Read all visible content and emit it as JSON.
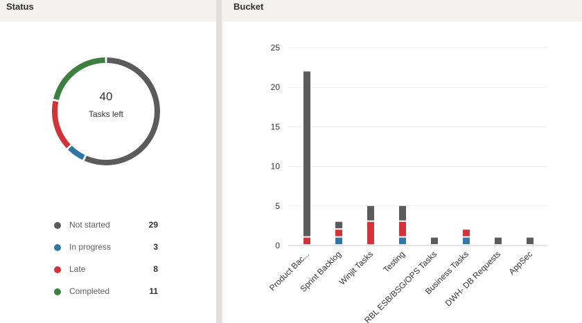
{
  "status_panel": {
    "title": "Status",
    "center_number": "40",
    "center_label": "Tasks left",
    "legend": [
      {
        "label": "Not started",
        "count": "29",
        "color": "#5b5b5b"
      },
      {
        "label": "In progress",
        "count": "3",
        "color": "#3078a3"
      },
      {
        "label": "Late",
        "count": "8",
        "color": "#d13438"
      },
      {
        "label": "Completed",
        "count": "11",
        "color": "#3c7f3f"
      }
    ]
  },
  "bucket_panel": {
    "title": "Bucket"
  },
  "chart_data": [
    {
      "type": "pie",
      "variant": "donut",
      "labels": [
        "Not started",
        "In progress",
        "Late",
        "Completed"
      ],
      "values": [
        29,
        3,
        8,
        11
      ],
      "colors": [
        "#5b5b5b",
        "#3078a3",
        "#d13438",
        "#3c7f3f"
      ]
    },
    {
      "type": "bar",
      "stacked": true,
      "categories": [
        "Product Bac...",
        "Sprint Backlog",
        "Winjit Tasks",
        "Testing",
        "RBL ESB/BSG/OPS Tasks",
        "Business Tasks",
        "DWH- DB Requests",
        "AppSec"
      ],
      "series": [
        {
          "values": [
            0,
            1,
            0,
            1,
            0,
            1,
            0,
            0
          ],
          "color": "#3078a3"
        },
        {
          "values": [
            1,
            1,
            3,
            2,
            0,
            1,
            0,
            0
          ],
          "color": "#d13438"
        },
        {
          "values": [
            21,
            1,
            2,
            2,
            1,
            0,
            1,
            1
          ],
          "color": "#5b5b5b"
        }
      ],
      "ylim": [
        0,
        25
      ],
      "yticks": [
        0,
        5,
        10,
        15,
        20,
        25
      ],
      "grid": true
    }
  ]
}
